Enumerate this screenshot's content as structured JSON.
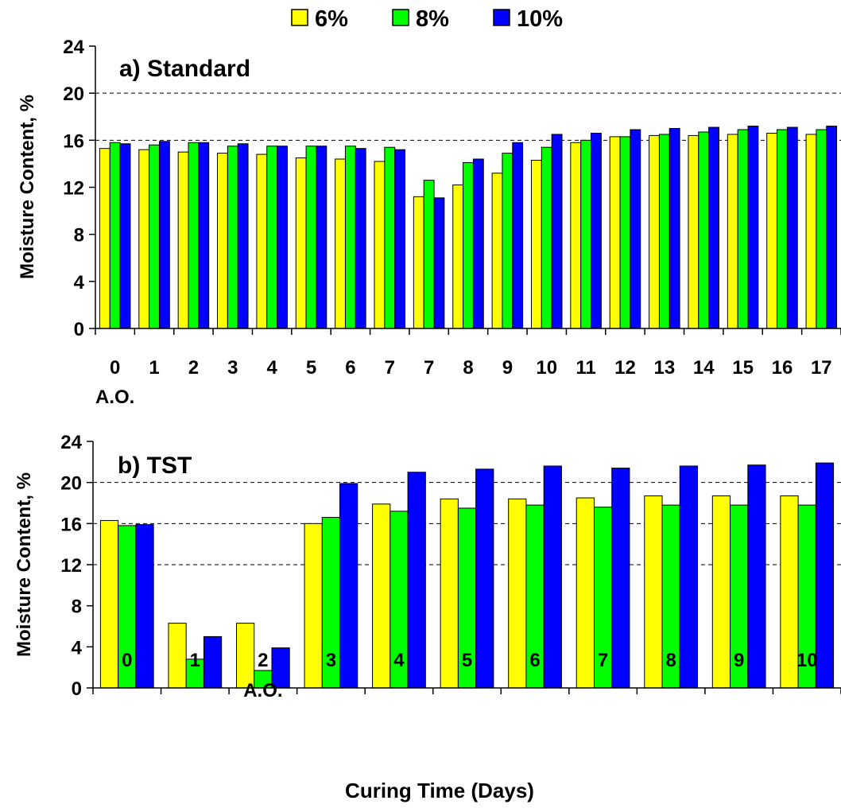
{
  "legend": {
    "entries": [
      {
        "label": "6%",
        "color": "#FFFF00"
      },
      {
        "label": "8%",
        "color": "#00FF00"
      },
      {
        "label": "10%",
        "color": "#0000FF"
      }
    ]
  },
  "shared_xlabel": "Curing Time (Days)",
  "chart_data": [
    {
      "type": "bar",
      "title": "a) Standard",
      "ylabel": "Moisture Content, %",
      "xlabel_note": "A.O.",
      "xlabel_note_under": "0",
      "ylim": [
        0,
        24
      ],
      "yticks": [
        0,
        4,
        8,
        12,
        16,
        20,
        24
      ],
      "grid": "dashed horizontal at 16 and 20",
      "legend_position": "top",
      "categories": [
        "0",
        "1",
        "2",
        "3",
        "4",
        "5",
        "6",
        "7",
        "7",
        "8",
        "9",
        "10",
        "11",
        "12",
        "13",
        "14",
        "15",
        "16",
        "17"
      ],
      "series": [
        {
          "name": "6%",
          "values": [
            15.3,
            15.2,
            15.0,
            14.9,
            14.8,
            14.5,
            14.4,
            14.2,
            11.2,
            12.2,
            13.2,
            14.3,
            15.8,
            16.3,
            16.4,
            16.4,
            16.5,
            16.6,
            16.5
          ]
        },
        {
          "name": "8%",
          "values": [
            15.8,
            15.6,
            15.8,
            15.5,
            15.5,
            15.5,
            15.5,
            15.4,
            12.6,
            14.1,
            14.9,
            15.4,
            16.0,
            16.3,
            16.5,
            16.7,
            16.9,
            16.9,
            16.9
          ]
        },
        {
          "name": "10%",
          "values": [
            15.7,
            15.9,
            15.8,
            15.7,
            15.5,
            15.5,
            15.3,
            15.2,
            11.1,
            14.4,
            15.8,
            16.5,
            16.6,
            16.9,
            17.0,
            17.1,
            17.2,
            17.1,
            17.2
          ]
        }
      ]
    },
    {
      "type": "bar",
      "title": "b) TST",
      "ylabel": "Moisture Content, %",
      "xlabel_note": "A.O.",
      "xlabel_note_under": "2",
      "ylim": [
        0,
        24
      ],
      "yticks": [
        0,
        4,
        8,
        12,
        16,
        20,
        24
      ],
      "grid": "dashed horizontal at 12, 16 and 20",
      "categories": [
        "0",
        "1",
        "2",
        "3",
        "4",
        "5",
        "6",
        "7",
        "8",
        "9",
        "10"
      ],
      "series": [
        {
          "name": "6%",
          "values": [
            16.3,
            6.3,
            6.3,
            16.0,
            17.9,
            18.4,
            18.4,
            18.5,
            18.7,
            18.7,
            18.7
          ]
        },
        {
          "name": "8%",
          "values": [
            15.8,
            2.8,
            1.7,
            16.6,
            17.2,
            17.5,
            17.8,
            17.6,
            17.8,
            17.8,
            17.8
          ]
        },
        {
          "name": "10%",
          "values": [
            15.9,
            5.0,
            3.9,
            19.9,
            21.0,
            21.3,
            21.6,
            21.4,
            21.6,
            21.7,
            21.9
          ]
        }
      ]
    }
  ]
}
